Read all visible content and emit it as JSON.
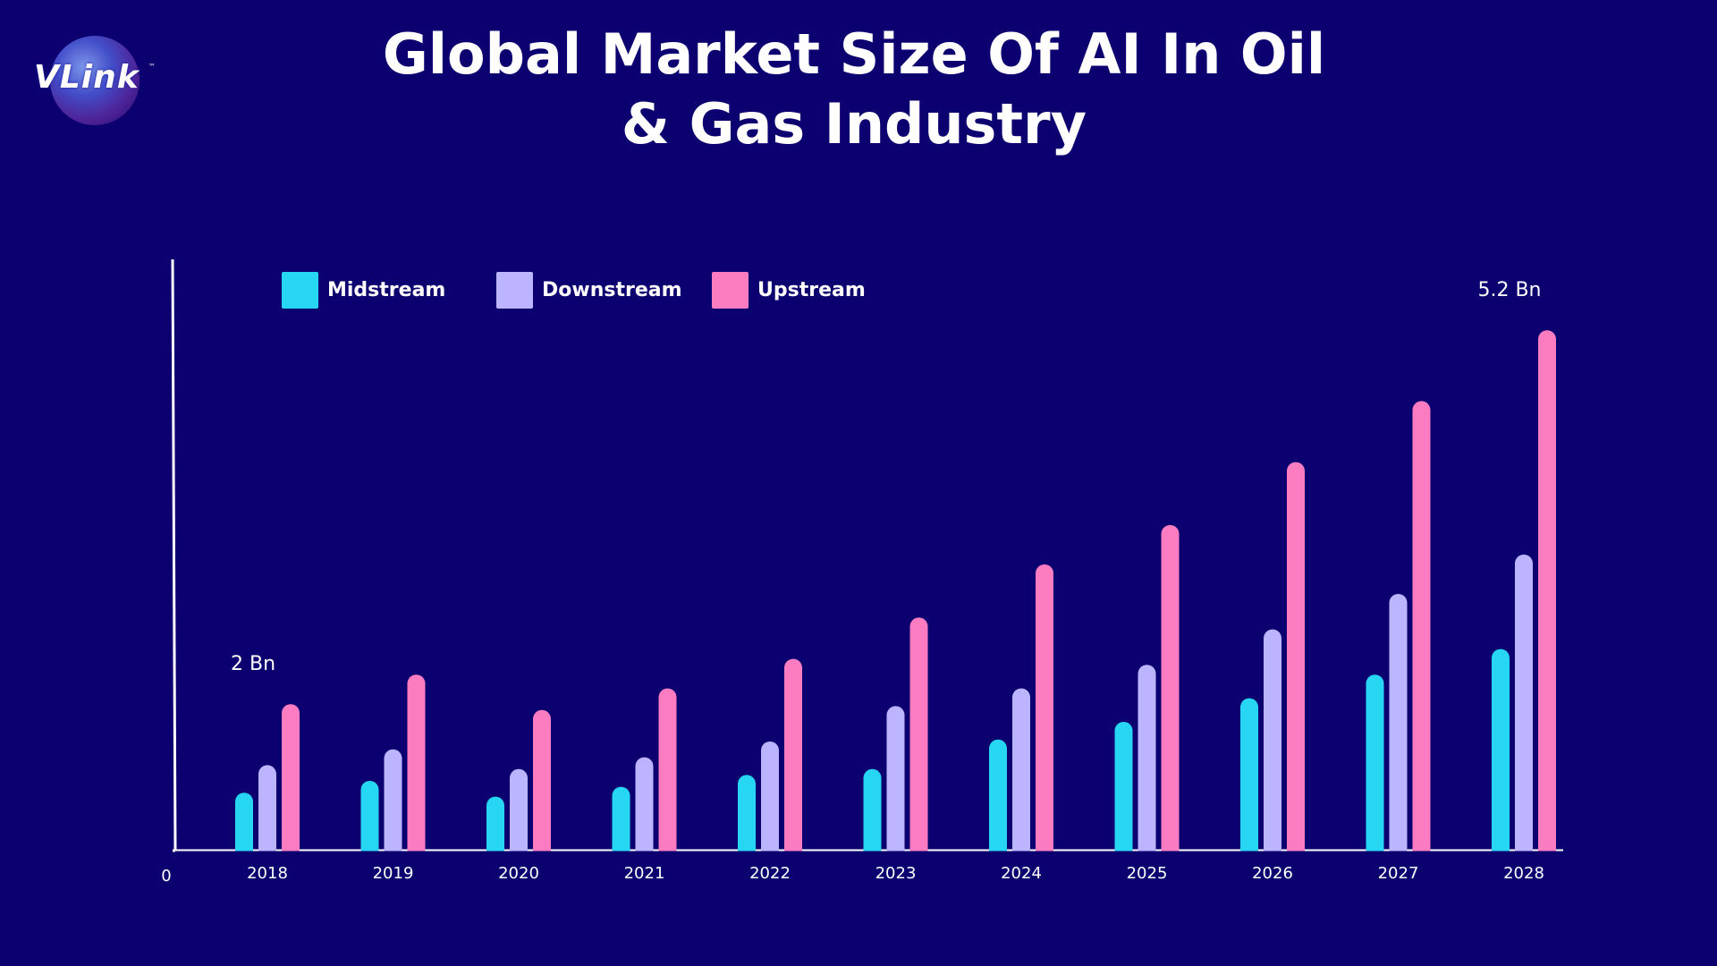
{
  "brand": {
    "logo_text": "VLink",
    "trademark": "™"
  },
  "chart_data": {
    "type": "bar",
    "title": "Global Market Size Of AI In Oil & Gas Industry",
    "categories": [
      "2018",
      "2019",
      "2020",
      "2021",
      "2022",
      "2023",
      "2024",
      "2025",
      "2026",
      "2027",
      "2028"
    ],
    "series": [
      {
        "name": "Midstream",
        "color": "#27d6f2",
        "values": [
          0.29,
          0.35,
          0.27,
          0.32,
          0.38,
          0.41,
          0.56,
          0.65,
          0.77,
          0.89,
          1.02
        ]
      },
      {
        "name": "Downstream",
        "color": "#bdb4ff",
        "values": [
          0.43,
          0.51,
          0.41,
          0.47,
          0.55,
          0.73,
          0.82,
          0.94,
          1.12,
          1.3,
          1.5
        ]
      },
      {
        "name": "Upstream",
        "color": "#fc7cc1",
        "values": [
          0.74,
          0.89,
          0.71,
          0.82,
          0.97,
          1.18,
          1.45,
          1.65,
          1.97,
          2.28,
          2.64
        ]
      }
    ],
    "annotations": [
      {
        "category": "2018",
        "text": "2 Bn"
      },
      {
        "category": "2028",
        "text": "5.2 Bn"
      }
    ],
    "ylim": [
      0,
      3.0
    ],
    "origin_label": "0",
    "legend": "top-left",
    "grid": false
  }
}
